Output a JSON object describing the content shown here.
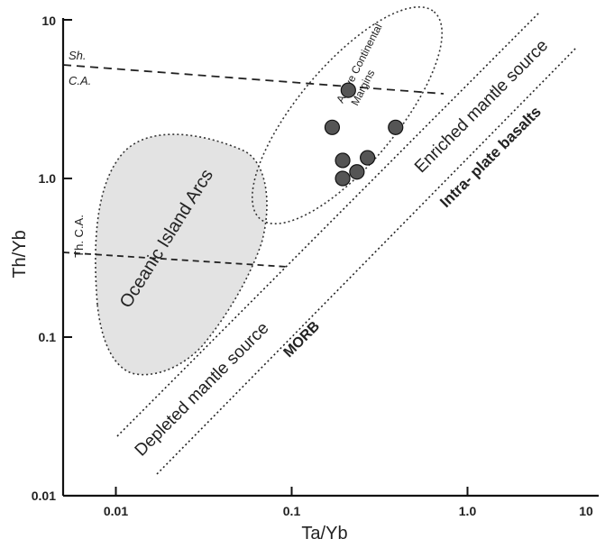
{
  "chart_data": {
    "type": "scatter",
    "title": "",
    "xlabel": "Ta/Yb",
    "ylabel": "Th/Yb",
    "x_scale": "log",
    "y_scale": "log",
    "xlim": [
      0.005,
      10
    ],
    "ylim": [
      0.01,
      10
    ],
    "x_ticks": [
      {
        "value": 0.01,
        "label": "0.01"
      },
      {
        "value": 0.1,
        "label": "0.1"
      },
      {
        "value": 1.0,
        "label": "1.0"
      },
      {
        "value": 10,
        "label": "10"
      }
    ],
    "y_ticks": [
      {
        "value": 0.01,
        "label": "0.01"
      },
      {
        "value": 0.1,
        "label": "0.1"
      },
      {
        "value": 1.0,
        "label": "1.0"
      },
      {
        "value": 10,
        "label": "10"
      }
    ],
    "grid": false,
    "legend": "none",
    "colors": {
      "points": "#555555",
      "island_arc_fill": "#e3e3e3",
      "lines": "#333333"
    },
    "series": [
      {
        "points": [
          {
            "x": 0.21,
            "y": 3.6
          },
          {
            "x": 0.17,
            "y": 2.1
          },
          {
            "x": 0.39,
            "y": 2.1
          },
          {
            "x": 0.195,
            "y": 1.3
          },
          {
            "x": 0.27,
            "y": 1.35
          },
          {
            "x": 0.235,
            "y": 1.1
          },
          {
            "x": 0.195,
            "y": 1.0
          }
        ]
      }
    ],
    "annotations": {
      "sh": "Sh.",
      "ca_upper": "C.A.",
      "th_ca": "Th. C.A.",
      "active_margins_1": "Active Continental",
      "active_margins_2": "Margins",
      "oceanic_arcs": "Oceanic Island Arcs",
      "enriched": "Enriched mantle source",
      "depleted": "Depleted mantle source",
      "morb": "MORB",
      "intraplate": "Intra- plate basalts"
    }
  }
}
